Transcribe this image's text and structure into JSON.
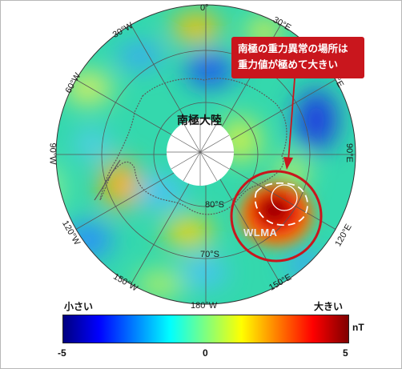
{
  "map": {
    "continent_label": "南極大陸",
    "anomaly_label": "WLMA",
    "longitude_labels": {
      "lon_0": "0°",
      "lon_30e": "30°E",
      "lon_60e": "60°E",
      "lon_90e": "90°E",
      "lon_120e": "120°E",
      "lon_150e": "150°E",
      "lon_180": "180°W",
      "lon_150w": "150°W",
      "lon_120w": "120°W",
      "lon_90w": "90°W",
      "lon_60w": "60°W",
      "lon_30w": "30°W"
    },
    "latitude_labels": {
      "lat_80s": "80°S",
      "lat_70s": "70°S"
    },
    "colors": {
      "highlight_circle": "#c9161d",
      "ocean_base": "#2fd9b0"
    }
  },
  "callout": {
    "line1": "南極の重力異常の場所は",
    "line2": "重力値が極めて大きい"
  },
  "scale": {
    "low_label": "小さい",
    "high_label": "大きい",
    "unit": "nT",
    "ticks": {
      "min": "-5",
      "mid": "0",
      "max": "5"
    },
    "range": [
      -5,
      5
    ]
  }
}
